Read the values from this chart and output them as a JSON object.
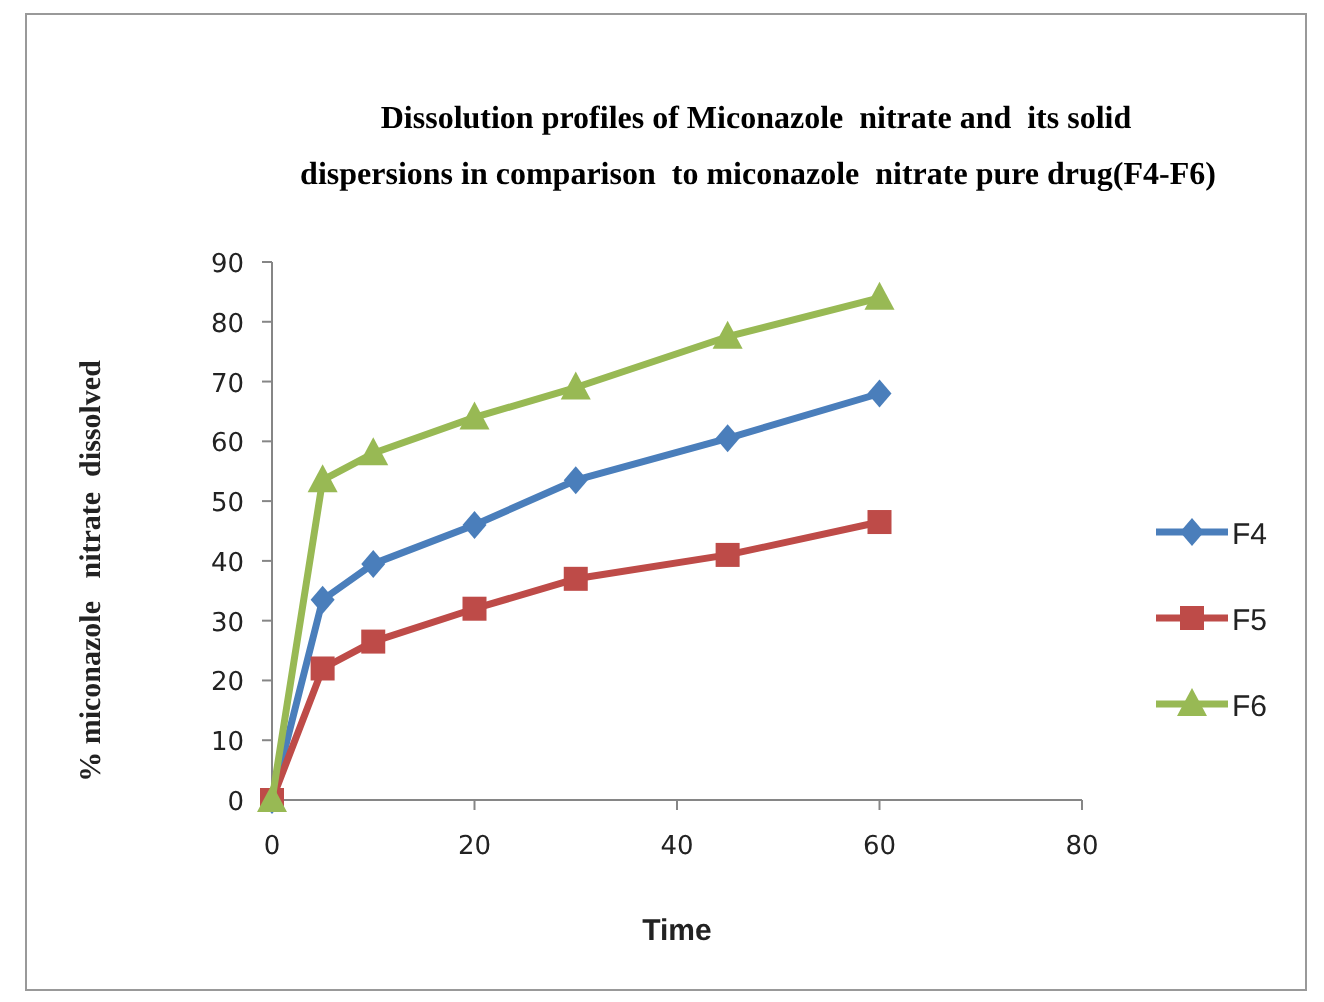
{
  "chart_data": {
    "type": "line",
    "title": "Dissolution profiles of Miconazole  nitrate and  its solid\ndispersions in comparison  to miconazole  nitrate pure drug(F4-F6)",
    "xlabel": "Time",
    "ylabel": "% miconazole   nitrate  dissolved",
    "x": [
      0,
      5,
      10,
      20,
      30,
      45,
      60
    ],
    "series": [
      {
        "name": "F4",
        "color": "#4a7ebb",
        "marker": "diamond",
        "values": [
          0,
          33.5,
          39.5,
          46,
          53.5,
          60.5,
          68
        ]
      },
      {
        "name": "F5",
        "color": "#be4b48",
        "marker": "square",
        "values": [
          0,
          22,
          26.5,
          32,
          37,
          41,
          46.5
        ]
      },
      {
        "name": "F6",
        "color": "#98b954",
        "marker": "triangle",
        "values": [
          0,
          53.5,
          58,
          64,
          69,
          77.5,
          84
        ]
      }
    ],
    "xlim": [
      0,
      80
    ],
    "xticks": [
      0,
      20,
      40,
      60,
      80
    ],
    "ylim": [
      0,
      90
    ],
    "yticks": [
      0,
      10,
      20,
      30,
      40,
      50,
      60,
      70,
      80,
      90
    ],
    "grid": false,
    "legend": "right",
    "line_style": "solid"
  }
}
